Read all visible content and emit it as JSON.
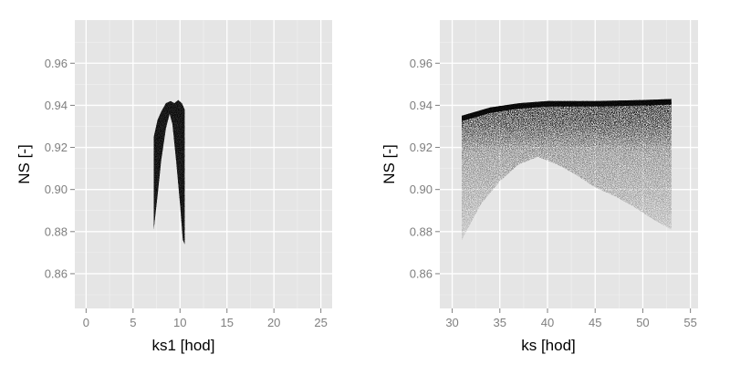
{
  "chart_data": [
    {
      "type": "scatter",
      "xlabel": "ks1 [hod]",
      "ylabel": "NS [-]",
      "xlim": [
        -1.2,
        26.2
      ],
      "ylim": [
        0.8435,
        0.9805
      ],
      "x_ticks": [
        0,
        5,
        10,
        15,
        20,
        25
      ],
      "y_ticks": [
        0.86,
        0.88,
        0.9,
        0.92,
        0.94,
        0.96
      ],
      "x_tick_labels": [
        "0",
        "5",
        "10",
        "15",
        "20",
        "25"
      ],
      "y_tick_labels": [
        "0.86",
        "0.88",
        "0.90",
        "0.92",
        "0.94",
        "0.96"
      ],
      "grid": true,
      "point_cloud": {
        "density": "dense",
        "upper_envelope": [
          [
            7.2,
            0.925
          ],
          [
            7.6,
            0.933
          ],
          [
            8.0,
            0.937
          ],
          [
            8.5,
            0.941
          ],
          [
            9.0,
            0.942
          ],
          [
            9.4,
            0.941
          ],
          [
            9.8,
            0.9425
          ],
          [
            10.2,
            0.941
          ],
          [
            10.5,
            0.938
          ]
        ],
        "lower_envelope": [
          [
            7.2,
            0.881
          ],
          [
            7.6,
            0.897
          ],
          [
            8.0,
            0.914
          ],
          [
            8.5,
            0.929
          ],
          [
            8.9,
            0.936
          ],
          [
            9.2,
            0.931
          ],
          [
            9.6,
            0.913
          ],
          [
            10.0,
            0.893
          ],
          [
            10.3,
            0.876
          ],
          [
            10.5,
            0.874
          ]
        ]
      }
    },
    {
      "type": "scatter",
      "xlabel": "ks [hod]",
      "ylabel": "NS [-]",
      "xlim": [
        28.7,
        55.8
      ],
      "ylim": [
        0.8435,
        0.9805
      ],
      "x_ticks": [
        30,
        35,
        40,
        45,
        50,
        55
      ],
      "y_ticks": [
        0.86,
        0.88,
        0.9,
        0.92,
        0.94,
        0.96
      ],
      "x_tick_labels": [
        "30",
        "35",
        "40",
        "45",
        "50",
        "55"
      ],
      "y_tick_labels": [
        "0.86",
        "0.88",
        "0.90",
        "0.92",
        "0.94",
        "0.96"
      ],
      "grid": true,
      "point_cloud": {
        "density": "dense band near upper envelope, sparse below",
        "upper_envelope": [
          [
            31,
            0.935
          ],
          [
            34,
            0.939
          ],
          [
            37,
            0.941
          ],
          [
            40,
            0.942
          ],
          [
            45,
            0.942
          ],
          [
            50,
            0.9425
          ],
          [
            53,
            0.943
          ]
        ],
        "lower_envelope": [
          [
            31,
            0.876
          ],
          [
            33,
            0.893
          ],
          [
            35,
            0.904
          ],
          [
            37,
            0.912
          ],
          [
            39,
            0.9155
          ],
          [
            41,
            0.912
          ],
          [
            43,
            0.907
          ],
          [
            45,
            0.901
          ],
          [
            47,
            0.897
          ],
          [
            49,
            0.892
          ],
          [
            51,
            0.886
          ],
          [
            53,
            0.881
          ]
        ]
      }
    }
  ],
  "colors": {
    "panel_bg": "#e5e5e5",
    "grid_major": "#ffffff",
    "grid_minor": "#f2f2f2",
    "points": "#000000",
    "tick_text": "#7f7f7f",
    "title_text": "#000000"
  }
}
